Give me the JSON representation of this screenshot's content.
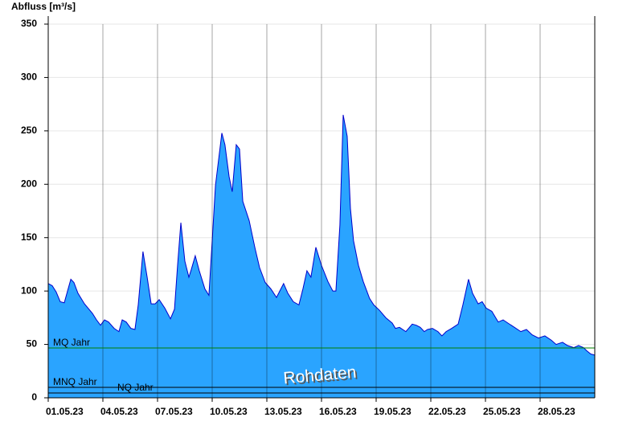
{
  "chart_data": {
    "type": "area",
    "y_axis_label": "Abfluss [m³/s]",
    "watermark": "Rohdaten",
    "xlim": [
      0,
      30
    ],
    "xticks": [
      {
        "value": 0,
        "label": "01.05.23"
      },
      {
        "value": 3,
        "label": "04.05.23"
      },
      {
        "value": 6,
        "label": "07.05.23"
      },
      {
        "value": 9,
        "label": "10.05.23"
      },
      {
        "value": 12,
        "label": "13.05.23"
      },
      {
        "value": 15,
        "label": "16.05.23"
      },
      {
        "value": 18,
        "label": "19.05.23"
      },
      {
        "value": 21,
        "label": "22.05.23"
      },
      {
        "value": 24,
        "label": "25.05.23"
      },
      {
        "value": 27,
        "label": "28.05.23"
      }
    ],
    "ylim": [
      0,
      350
    ],
    "yticks": [
      0,
      50,
      100,
      150,
      200,
      250,
      300,
      350
    ],
    "grid": true,
    "x": [
      0,
      0.22,
      0.44,
      0.66,
      0.88,
      1.24,
      1.41,
      1.63,
      1.99,
      2.43,
      2.65,
      2.87,
      3.09,
      3.31,
      3.62,
      3.88,
      4.06,
      4.28,
      4.54,
      4.76,
      4.94,
      5.2,
      5.43,
      5.65,
      5.87,
      6.09,
      6.4,
      6.71,
      6.93,
      7.1,
      7.28,
      7.5,
      7.72,
      7.85,
      8.07,
      8.29,
      8.6,
      8.82,
      9,
      9.18,
      9.53,
      9.7,
      9.93,
      10.1,
      10.32,
      10.5,
      10.68,
      11.03,
      11.34,
      11.6,
      11.91,
      12.22,
      12.53,
      12.92,
      13.15,
      13.45,
      13.76,
      13.98,
      14.2,
      14.42,
      14.69,
      15,
      15.35,
      15.62,
      15.79,
      16.01,
      16.19,
      16.41,
      16.59,
      16.76,
      17.03,
      17.29,
      17.64,
      17.87,
      18.18,
      18.53,
      18.88,
      19.06,
      19.28,
      19.63,
      19.98,
      20.2,
      20.42,
      20.64,
      20.82,
      21.09,
      21.39,
      21.61,
      21.84,
      22.14,
      22.5,
      22.76,
      23.07,
      23.29,
      23.6,
      23.82,
      24.04,
      24.35,
      24.7,
      24.97,
      25.23,
      25.59,
      25.94,
      26.25,
      26.56,
      26.91,
      27.26,
      27.61,
      27.88,
      28.23,
      28.5,
      28.85,
      29.11,
      29.38,
      29.56,
      29.78,
      30
    ],
    "series": [
      {
        "color": "#2aa4ff",
        "line_color": "#0000cc",
        "values": [
          107,
          105,
          99,
          90,
          89,
          111,
          108,
          98,
          88,
          79,
          73,
          68,
          73,
          71,
          65,
          62,
          73,
          71,
          65,
          64,
          87,
          137,
          113,
          88,
          88,
          92,
          84,
          74,
          83,
          124,
          164,
          128,
          113,
          120,
          133,
          119,
          102,
          96,
          147,
          199,
          248,
          237,
          207,
          193,
          237,
          233,
          184,
          166,
          141,
          122,
          108,
          102,
          94,
          107,
          98,
          90,
          87,
          102,
          119,
          113,
          141,
          124,
          109,
          100,
          100,
          162,
          265,
          245,
          177,
          147,
          124,
          109,
          93,
          87,
          82,
          75,
          70,
          65,
          66,
          62,
          69,
          68,
          66,
          62,
          64,
          65,
          62,
          58,
          62,
          65,
          69,
          87,
          111,
          98,
          88,
          90,
          84,
          81,
          71,
          73,
          70,
          66,
          62,
          64,
          59,
          56,
          58,
          54,
          50,
          52,
          49,
          47,
          49,
          47,
          44,
          41,
          40
        ]
      }
    ],
    "reference_lines": [
      {
        "label": "MQ Jahr",
        "value": 46.7,
        "color": "#008000"
      },
      {
        "label": "MNQ Jahr",
        "value": 9.8,
        "color": "#000000"
      },
      {
        "label": "NQ Jahr",
        "value": 4.5,
        "color": "#000000"
      }
    ]
  }
}
